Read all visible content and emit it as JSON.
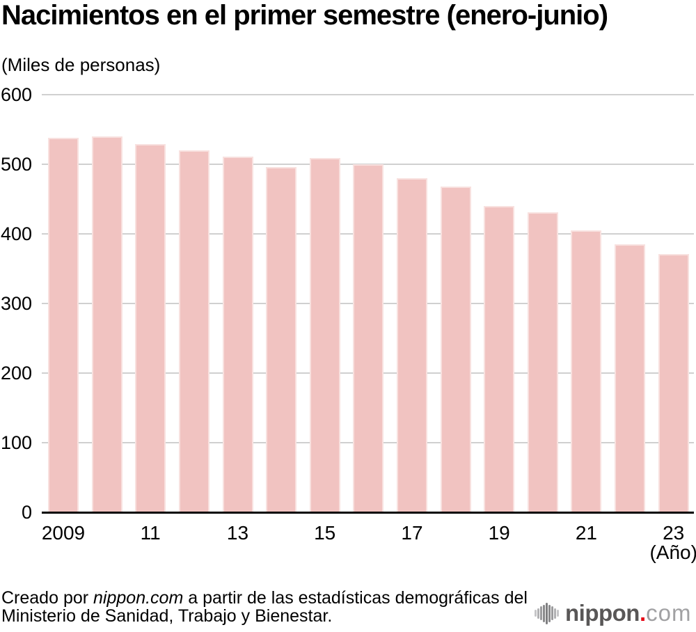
{
  "chart_data": {
    "type": "bar",
    "title": "Nacimientos en el primer semestre (enero-junio)",
    "unit_label": "(Miles de personas)",
    "categories": [
      "2009",
      "2010",
      "2011",
      "2012",
      "2013",
      "2014",
      "2015",
      "2016",
      "2017",
      "2018",
      "2019",
      "2020",
      "2021",
      "2022",
      "2023"
    ],
    "values": [
      538,
      540,
      529,
      520,
      511,
      496,
      509,
      500,
      480,
      468,
      440,
      431,
      405,
      385,
      371
    ],
    "x_tick_labels": [
      "2009",
      "11",
      "13",
      "15",
      "17",
      "19",
      "21",
      "23"
    ],
    "xlabel": "(Año)",
    "y_ticks": [
      0,
      100,
      200,
      300,
      400,
      500,
      600
    ],
    "ylim": [
      0,
      600
    ],
    "grid": true,
    "legend": null,
    "bar_color": "#F1C3C1",
    "gridline_color": "#D0D0D0",
    "axis_color": "#000000"
  },
  "footer": {
    "credit_prefix": "Creado por ",
    "credit_brand": "nippon.com",
    "credit_suffix": " a partir de las estadísticas demográficas del",
    "credit_line2": "Ministerio de Sanidad, Trabajo y Bienestar."
  },
  "logo": {
    "name": "nippon",
    "dot": ".",
    "tld": "com",
    "brand_red": "#E60012",
    "name_color": "#595757",
    "tld_color": "#A1A1A3",
    "icon_bar_heights": [
      10,
      15,
      20,
      25,
      31,
      25,
      20,
      15,
      10
    ],
    "icon_bar_colors": [
      "#C6C6C8",
      "#B1B1B3",
      "#9B9B9D",
      "#8A8A8C",
      "#7F7F81",
      "#8A8A8C",
      "#9B9B9D",
      "#B1B1B3",
      "#C6C6C8"
    ]
  }
}
